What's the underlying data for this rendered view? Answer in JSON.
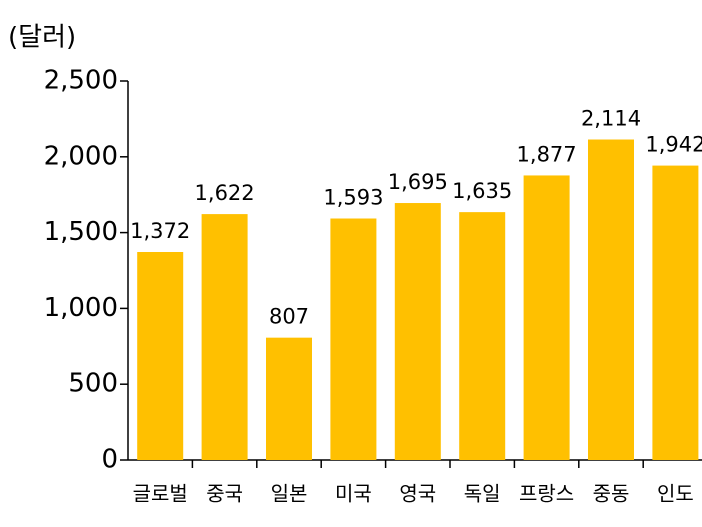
{
  "chart_data": {
    "type": "bar",
    "y_label": "(달러)",
    "categories": [
      "글로벌",
      "중국",
      "일본",
      "미국",
      "영국",
      "독일",
      "프랑스",
      "중동",
      "인도"
    ],
    "values": [
      1372,
      1622,
      807,
      1593,
      1695,
      1635,
      1877,
      2114,
      1942
    ],
    "value_labels": [
      "1,372",
      "1,622",
      "807",
      "1,593",
      "1,695",
      "1,635",
      "1,877",
      "2,114",
      "1,942"
    ],
    "color": "#ffc000",
    "ylim": [
      0,
      2500
    ],
    "yticks": [
      0,
      500,
      {
        "value": 1000,
        "label": "1,000"
      },
      {
        "value": 1500,
        "label": "1,500"
      },
      {
        "value": 2000,
        "label": "2,000"
      },
      {
        "value": 2500,
        "label": "2,500"
      }
    ],
    "grid": false
  }
}
